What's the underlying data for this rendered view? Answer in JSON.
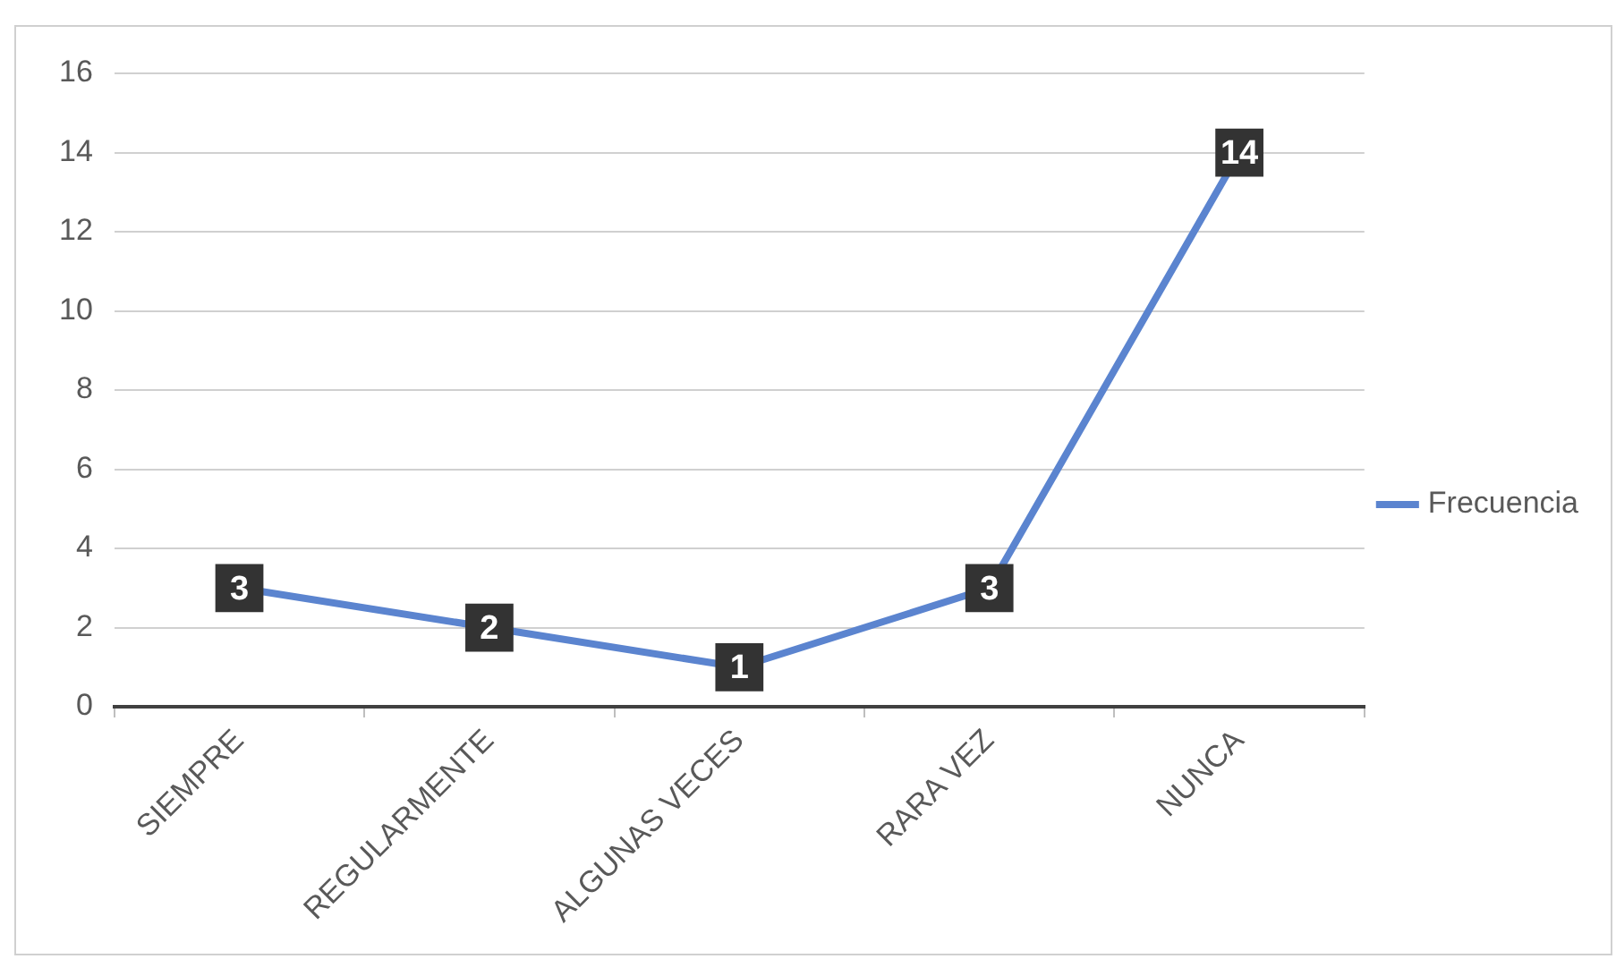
{
  "chart_data": {
    "type": "line",
    "categories": [
      "SIEMPRE",
      "REGULARMENTE",
      "ALGUNAS VECES",
      "RARA VEZ",
      "NUNCA"
    ],
    "series": [
      {
        "name": "Frecuencia",
        "color": "#5b84cf",
        "values": [
          3,
          2,
          1,
          3,
          14
        ]
      }
    ],
    "ylim": [
      0,
      16
    ],
    "yticks": [
      0,
      2,
      4,
      6,
      8,
      10,
      12,
      14,
      16
    ],
    "grid": "y",
    "legend": "right",
    "data_labels": true,
    "marker": "square"
  }
}
